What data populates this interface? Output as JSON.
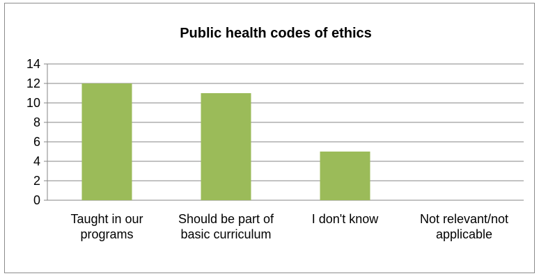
{
  "chart_data": {
    "type": "bar",
    "title": "Public health codes of ethics",
    "categories": [
      "Taught in our programs",
      "Should be part of basic curriculum",
      "I don't know",
      "Not relevant/not applicable"
    ],
    "values": [
      12,
      11,
      5,
      0
    ],
    "ylim": [
      0,
      14
    ],
    "yticks": [
      "0",
      "2",
      "4",
      "6",
      "8",
      "10",
      "12",
      "14"
    ],
    "xlabel": "",
    "ylabel": "",
    "grid": true,
    "legend": "none",
    "bar_color": "#9bbb59",
    "grid_color": "#868686"
  }
}
